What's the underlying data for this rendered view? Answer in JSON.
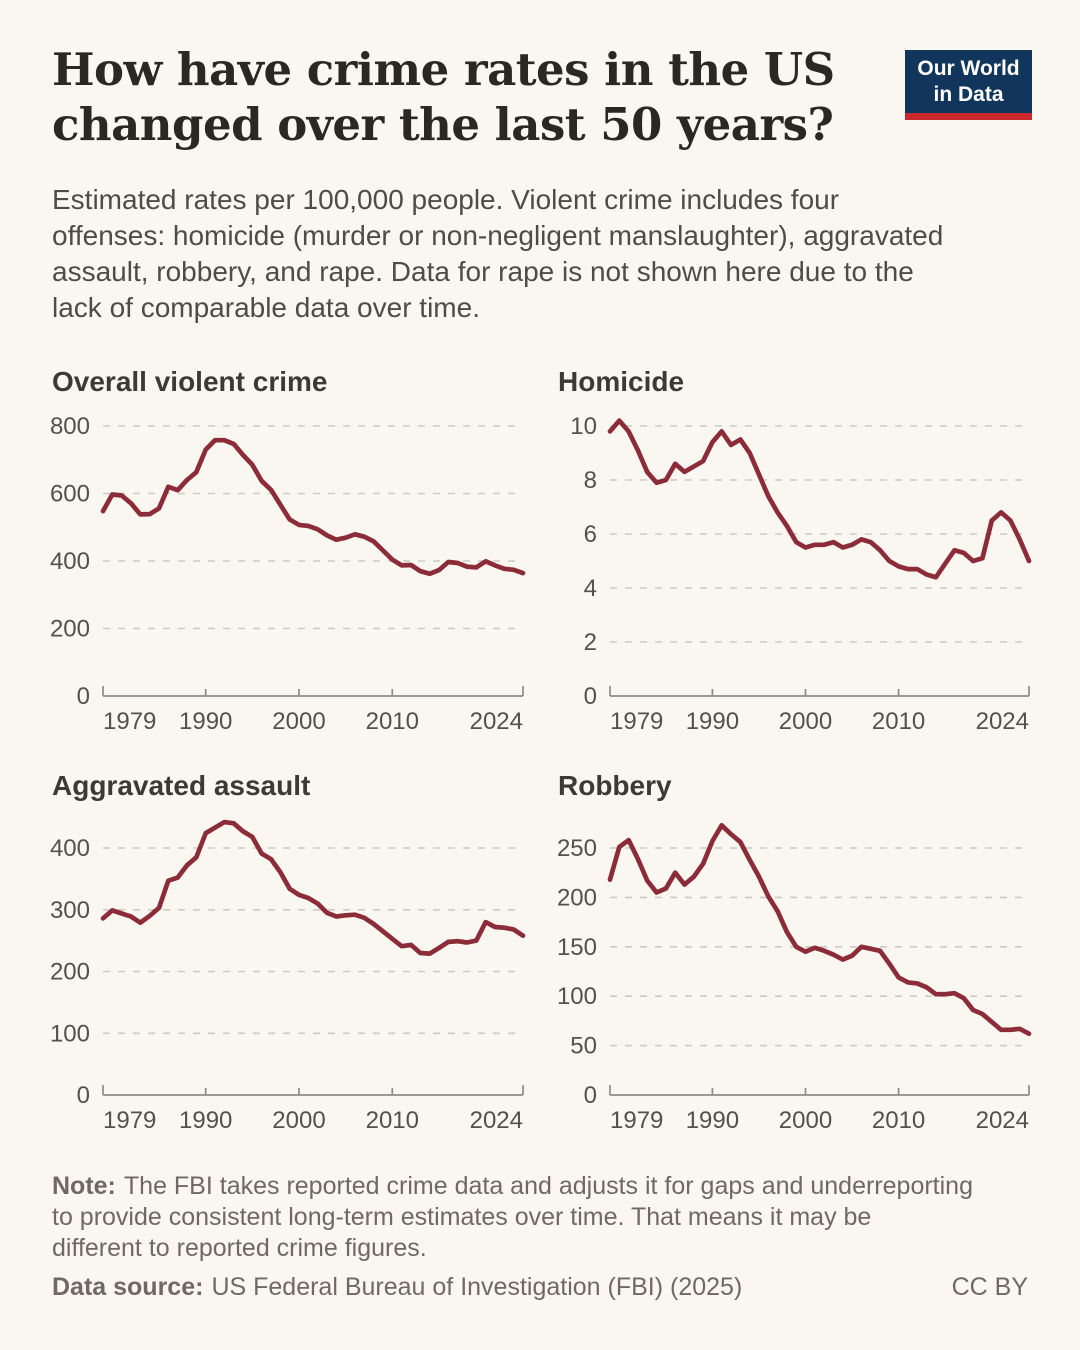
{
  "header": {
    "title_lines": [
      "How have crime rates in the US",
      "changed over the last 50 years?"
    ],
    "subtitle_lines": [
      "Estimated rates per 100,000 people. Violent crime includes four",
      "offenses: homicide (murder or non-negligent manslaughter), aggravated",
      "assault, robbery, and rape. Data for rape is not shown here due to the",
      "lack of comparable data over time."
    ],
    "logo": {
      "line1": "Our World",
      "line2": "in Data"
    }
  },
  "footer": {
    "note_label": "Note:",
    "note_lines": [
      "The FBI takes reported crime data and adjusts it for gaps and underreporting",
      "to provide consistent long-term estimates over time. That means it may be",
      "different to reported crime figures."
    ],
    "source_label": "Data source:",
    "source_text": "US Federal Bureau of Investigation (FBI) (2025)",
    "license": "CC BY"
  },
  "colors": {
    "background": "#f9f7f0",
    "line": "#8b2c38",
    "grid": "#cdcac2",
    "axis": "#8f8c85",
    "tick_label": "#54514c",
    "logo_bg": "#12355b",
    "logo_bar": "#c9292c"
  },
  "chart_data": [
    {
      "id": "overall-violent-crime",
      "type": "line",
      "title": "Overall violent crime",
      "unit": "rate per 100,000 people",
      "x_start_year": 1979,
      "x_end_year": 2024,
      "x_ticks": [
        1979,
        1990,
        2000,
        2010,
        2024
      ],
      "y_ticks": [
        0,
        200,
        400,
        600,
        800
      ],
      "ylim": [
        0,
        800
      ],
      "grid": true,
      "values": [
        548,
        597,
        594,
        571,
        538,
        539,
        556,
        620,
        610,
        640,
        663,
        730,
        758,
        758,
        747,
        714,
        685,
        637,
        611,
        567,
        523,
        507,
        504,
        494,
        476,
        463,
        469,
        479,
        472,
        458,
        431,
        404,
        387,
        388,
        370,
        362,
        373,
        397,
        394,
        383,
        381,
        399,
        387,
        377,
        374,
        364
      ]
    },
    {
      "id": "homicide",
      "type": "line",
      "title": "Homicide",
      "unit": "rate per 100,000 people",
      "x_start_year": 1979,
      "x_end_year": 2024,
      "x_ticks": [
        1979,
        1990,
        2000,
        2010,
        2024
      ],
      "y_ticks": [
        0,
        2,
        4,
        6,
        8,
        10
      ],
      "ylim": [
        0,
        10
      ],
      "grid": true,
      "values": [
        9.8,
        10.2,
        9.8,
        9.1,
        8.3,
        7.9,
        8.0,
        8.6,
        8.3,
        8.5,
        8.7,
        9.4,
        9.8,
        9.3,
        9.5,
        9.0,
        8.2,
        7.4,
        6.8,
        6.3,
        5.7,
        5.5,
        5.6,
        5.6,
        5.7,
        5.5,
        5.6,
        5.8,
        5.7,
        5.4,
        5.0,
        4.8,
        4.7,
        4.7,
        4.5,
        4.4,
        4.9,
        5.4,
        5.3,
        5.0,
        5.1,
        6.5,
        6.8,
        6.5,
        5.8,
        5.0
      ]
    },
    {
      "id": "aggravated-assault",
      "type": "line",
      "title": "Aggravated assault",
      "unit": "rate per 100,000 people",
      "x_start_year": 1979,
      "x_end_year": 2024,
      "x_ticks": [
        1979,
        1990,
        2000,
        2010,
        2024
      ],
      "y_ticks": [
        0,
        100,
        200,
        300,
        400
      ],
      "ylim": [
        0,
        400
      ],
      "grid": true,
      "values": [
        286,
        299,
        294,
        289,
        279,
        290,
        303,
        347,
        352,
        372,
        385,
        424,
        433,
        442,
        440,
        427,
        418,
        391,
        382,
        361,
        334,
        324,
        319,
        310,
        295,
        289,
        291,
        292,
        287,
        277,
        265,
        253,
        241,
        243,
        230,
        229,
        238,
        248,
        249,
        247,
        250,
        280,
        272,
        271,
        268,
        258
      ]
    },
    {
      "id": "robbery",
      "type": "line",
      "title": "Robbery",
      "unit": "rate per 100,000 people",
      "x_start_year": 1979,
      "x_end_year": 2024,
      "x_ticks": [
        1979,
        1990,
        2000,
        2010,
        2024
      ],
      "y_ticks": [
        0,
        50,
        100,
        150,
        200,
        250
      ],
      "ylim": [
        0,
        250
      ],
      "grid": true,
      "values": [
        218,
        251,
        258,
        239,
        217,
        205,
        209,
        225,
        213,
        221,
        234,
        257,
        273,
        264,
        256,
        238,
        221,
        201,
        186,
        165,
        150,
        145,
        149,
        146,
        142,
        137,
        141,
        150,
        148,
        146,
        133,
        119,
        114,
        113,
        109,
        102,
        102,
        103,
        98,
        86,
        82,
        74,
        66,
        66,
        67,
        62
      ]
    }
  ]
}
